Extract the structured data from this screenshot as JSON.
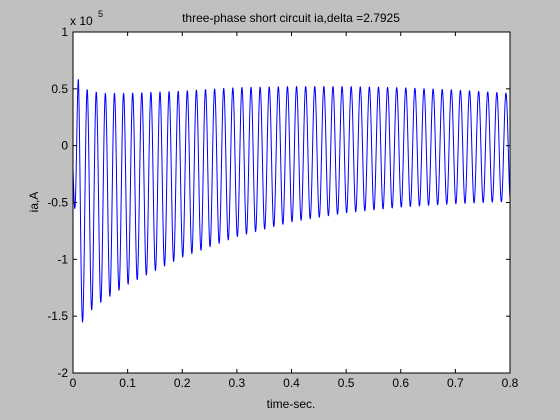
{
  "chart_data": {
    "type": "line",
    "title": "three-phase short circuit ia,delta =2.7925",
    "xlabel": "time-sec.",
    "ylabel": "ia,A",
    "y_exponent_prefix": "x 10",
    "y_exponent_power": "5",
    "xlim": [
      0,
      0.8
    ],
    "ylim": [
      -2,
      1
    ],
    "x_ticks": [
      0,
      0.1,
      0.2,
      0.3,
      0.4,
      0.5,
      0.6,
      0.7,
      0.8
    ],
    "x_tick_labels": [
      "0",
      "0.1",
      "0.2",
      "0.3",
      "0.4",
      "0.5",
      "0.6",
      "0.7",
      "0.8"
    ],
    "y_ticks": [
      -2,
      -1.5,
      -1,
      -0.5,
      0,
      0.5,
      1
    ],
    "y_tick_labels": [
      "-2",
      "-1.5",
      "-1",
      "-0.5",
      "0",
      "0.5",
      "1"
    ],
    "grid": false,
    "line_color": "#0000ff",
    "frequency_hz": 60,
    "series": [
      {
        "upper_envelope": {
          "t": [
            0.0,
            0.01,
            0.02,
            0.05,
            0.1,
            0.2,
            0.3,
            0.4,
            0.5,
            0.6,
            0.7,
            0.8
          ],
          "ia_e5": [
            -0.2,
            0.62,
            0.5,
            0.46,
            0.46,
            0.48,
            0.51,
            0.52,
            0.52,
            0.51,
            0.49,
            0.46
          ]
        },
        "lower_envelope": {
          "t": [
            0.0,
            0.01,
            0.02,
            0.05,
            0.1,
            0.2,
            0.3,
            0.4,
            0.5,
            0.6,
            0.7,
            0.8
          ],
          "ia_e5": [
            -0.2,
            -1.7,
            -1.5,
            -1.38,
            -1.22,
            -0.98,
            -0.8,
            -0.67,
            -0.59,
            -0.54,
            -0.51,
            -0.49
          ]
        }
      }
    ]
  }
}
